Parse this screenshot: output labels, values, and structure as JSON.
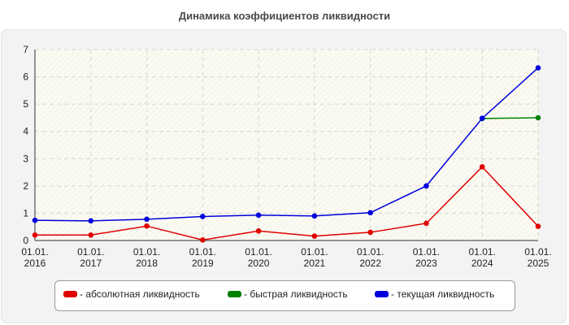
{
  "chart_data": {
    "type": "line",
    "title": "Динамика коэффициентов ликвидности",
    "xlabel": "",
    "ylabel": "",
    "categories": [
      "01.01.|2016",
      "01.01.|2017",
      "01.01.|2018",
      "01.01.|2019",
      "01.01.|2020",
      "01.01.|2021",
      "01.01.|2022",
      "01.01.|2023",
      "01.01.|2024",
      "01.01.|2025"
    ],
    "ylim": [
      0,
      7
    ],
    "yticks": [
      0,
      1,
      2,
      3,
      4,
      5,
      6,
      7
    ],
    "grid": true,
    "legend_position": "bottom",
    "series": [
      {
        "name": "- абсолютная ликвидность",
        "color": "#e00000",
        "values": [
          0.2,
          0.2,
          0.53,
          0.02,
          0.35,
          0.16,
          0.3,
          0.63,
          2.7,
          0.52
        ]
      },
      {
        "name": "- быстрая ликвидность",
        "color": "#008000",
        "values": [
          null,
          null,
          null,
          null,
          null,
          null,
          null,
          null,
          4.47,
          4.5
        ]
      },
      {
        "name": "- текущая ликвидность",
        "color": "#0000dd",
        "values": [
          0.74,
          0.72,
          0.78,
          0.88,
          0.93,
          0.9,
          1.02,
          2.0,
          4.48,
          6.33
        ]
      }
    ]
  }
}
